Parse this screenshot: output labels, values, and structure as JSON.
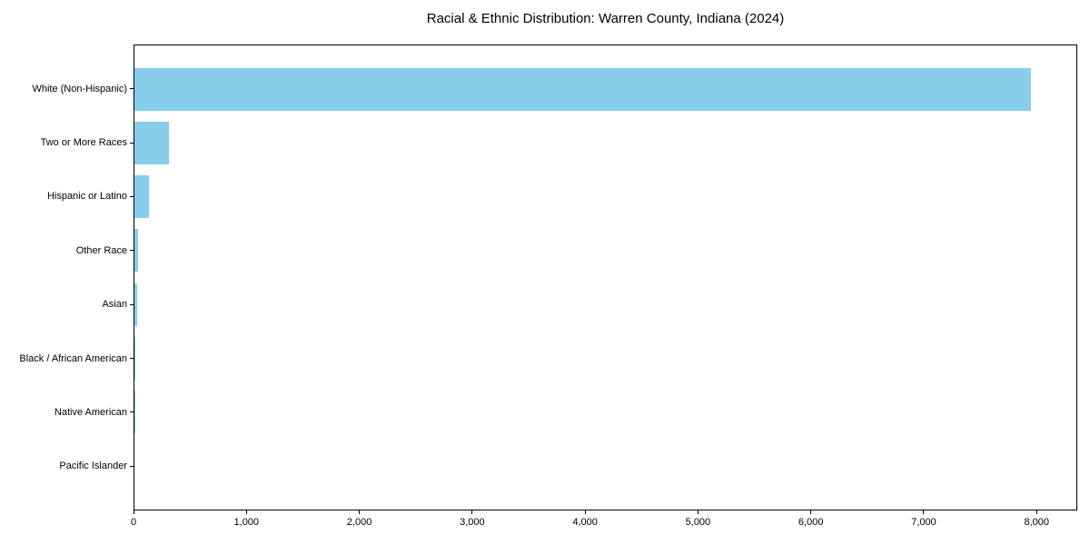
{
  "colors": {
    "bar": "#87CEEB",
    "axis": "#000000",
    "text": "#000000",
    "background": "#ffffff"
  },
  "chart_data": {
    "type": "bar",
    "orientation": "horizontal",
    "title": "Racial & Ethnic Distribution: Warren County, Indiana (2024)",
    "xlabel": "",
    "ylabel": "",
    "categories": [
      "White (Non-Hispanic)",
      "Two or More Races",
      "Hispanic or Latino",
      "Other Race",
      "Asian",
      "Black / African American",
      "Native American",
      "Pacific Islander"
    ],
    "values": [
      7960,
      305,
      130,
      35,
      22,
      7,
      2,
      0
    ],
    "xlim": [
      0,
      8360
    ],
    "xticks": [
      0,
      1000,
      2000,
      3000,
      4000,
      5000,
      6000,
      7000,
      8000
    ],
    "xtick_labels": [
      "0",
      "1,000",
      "2,000",
      "3,000",
      "4,000",
      "5,000",
      "6,000",
      "7,000",
      "8,000"
    ],
    "grid": false,
    "legend": null,
    "bar_color": "#87CEEB"
  }
}
